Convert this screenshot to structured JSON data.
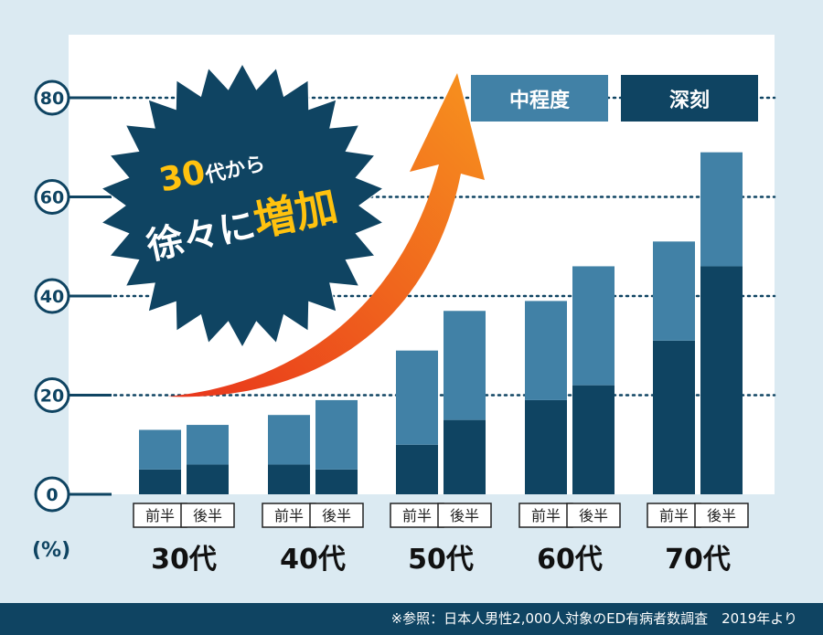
{
  "chart_data": {
    "type": "bar",
    "stacked": true,
    "groups": [
      "30代",
      "40代",
      "50代",
      "60代",
      "70代"
    ],
    "sub_categories": [
      "前半",
      "後半"
    ],
    "series": [
      {
        "name": "深刻",
        "color": "#0f4462",
        "values": [
          [
            5,
            6
          ],
          [
            6,
            5
          ],
          [
            10,
            15
          ],
          [
            19,
            22
          ],
          [
            31,
            46
          ]
        ]
      },
      {
        "name": "中程度",
        "color": "#4181a6",
        "values": [
          [
            8,
            8
          ],
          [
            10,
            14
          ],
          [
            19,
            22
          ],
          [
            20,
            24
          ],
          [
            20,
            23
          ]
        ]
      }
    ],
    "ylim": [
      0,
      80
    ],
    "yticks": [
      "0",
      "20",
      "40",
      "60",
      "80"
    ],
    "ylabel": "(%)",
    "grid": true,
    "legend_position": "top-right"
  },
  "legend": {
    "moderate": "中程度",
    "severe": "深刻"
  },
  "badge": {
    "num": "30",
    "dai": "代",
    "kara": "から",
    "joujo": "徐々に",
    "zouka": "増加"
  },
  "footer": "※参照：日本人男性2,000人対象のED有病者数調査　2019年より",
  "colors": {
    "background": "#dbeaf2",
    "panel": "#ffffff",
    "axis": "#0f4462",
    "arrow_start": "#e8341c",
    "arrow_end": "#f7931e",
    "badge_fill": "#0f4462",
    "badge_accent": "#ffc20e"
  }
}
